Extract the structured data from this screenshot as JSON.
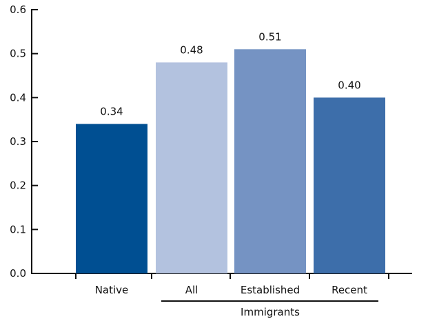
{
  "chart_data": {
    "type": "bar",
    "title": "",
    "xlabel": "",
    "ylabel": "",
    "ylim": [
      0,
      0.6
    ],
    "yticks": [
      0,
      0.1,
      0.2,
      0.3,
      0.4,
      0.5,
      0.6
    ],
    "ytick_labels": [
      "0.0",
      "0.1",
      "0.2",
      "0.3",
      "0.4",
      "0.5",
      "0.6"
    ],
    "grid": false,
    "legend": "none",
    "categories": [
      "Native",
      "All",
      "Established",
      "Recent"
    ],
    "values": [
      0.34,
      0.48,
      0.51,
      0.4
    ],
    "value_labels": [
      "0.34",
      "0.48",
      "0.51",
      "0.40"
    ],
    "colors": [
      "#004f92",
      "#b3c2df",
      "#7593c3",
      "#3d6eaa"
    ],
    "groups": [
      {
        "label": "Immigrants",
        "categories": [
          "All",
          "Established",
          "Recent"
        ]
      }
    ]
  }
}
